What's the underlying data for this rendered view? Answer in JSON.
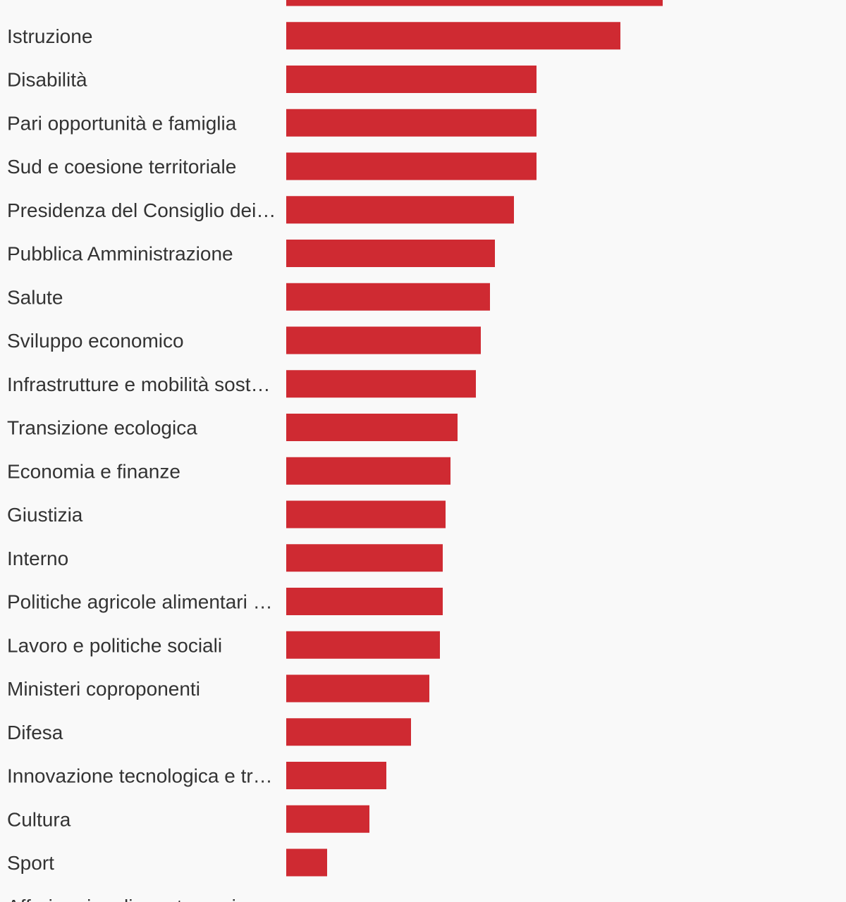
{
  "chart_data": {
    "type": "bar",
    "orientation": "horizontal",
    "categories": [
      "",
      "Istruzione",
      "Disabilità",
      "Pari opportunità e famiglia",
      "Sud e coesione territoriale",
      "Presidenza del Consiglio dei…",
      "Pubblica Amministrazione",
      "Salute",
      "Sviluppo economico",
      "Infrastrutture e mobilità sost…",
      "Transizione ecologica",
      "Economia e finanze",
      "Giustizia",
      "Interno",
      "Politiche agricole alimentari …",
      "Lavoro e politiche sociali",
      "Ministeri coproponenti",
      "Difesa",
      "Innovazione tecnologica e tr…",
      "Cultura",
      "Sport",
      "Affari regionali e autonomie"
    ],
    "values": [
      534,
      474,
      355,
      355,
      355,
      323,
      296,
      289,
      276,
      269,
      243,
      233,
      226,
      222,
      222,
      218,
      203,
      177,
      142,
      118,
      58,
      0
    ],
    "title": "",
    "xlabel": "",
    "ylabel": "",
    "xlim": [
      0,
      794
    ],
    "grid": false,
    "legend": "none",
    "colors": {
      "bar": "#cf2a32",
      "label": "#333333",
      "background": "#f9f9f9"
    }
  }
}
